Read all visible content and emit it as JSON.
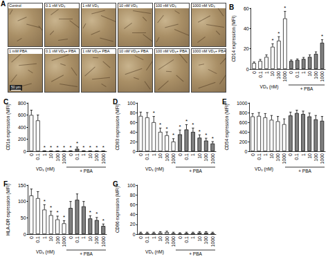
{
  "image_panel": {
    "panel": "A",
    "tiles": [
      "Control",
      "0.1 nM VD₃",
      "1 nM VD₃",
      "10 nM VD₃",
      "100 nM VD₃",
      "1000 nM VD₃",
      "1 mM PBA",
      "0.1 nM VD₃+ PBA",
      "1 nM VD₃+ PBA",
      "10 nM VD₃+ PBA",
      "100 nM VD₃+ PBA",
      "1000 nM VD₃+ PBA"
    ],
    "scale_bar": "50 μm"
  },
  "chart_data": [
    {
      "panel": "B",
      "type": "bar",
      "ylabel": "CD14 expression (MFI)",
      "xlabel": "VD₃ (nM)",
      "group_label": "+ PBA",
      "categories": [
        "0",
        "0.1",
        "1",
        "10",
        "100",
        "1000",
        "0",
        "0.1",
        "1",
        "10",
        "100",
        "1000"
      ],
      "values": [
        6,
        8,
        12,
        22,
        28,
        50,
        8,
        9,
        10,
        12,
        15,
        26
      ],
      "errors": [
        1,
        1.5,
        2,
        3,
        4,
        7,
        1,
        1,
        1.5,
        2,
        2,
        3
      ],
      "significance": [
        null,
        null,
        null,
        "*",
        "*",
        "*",
        null,
        null,
        null,
        null,
        null,
        "*"
      ],
      "colors": [
        "#ffffff",
        "#ffffff",
        "#ffffff",
        "#ffffff",
        "#ffffff",
        "#ffffff",
        "#7f7f7f",
        "#7f7f7f",
        "#7f7f7f",
        "#7f7f7f",
        "#7f7f7f",
        "#7f7f7f"
      ],
      "ylim": [
        0,
        60
      ],
      "yticks": [
        0,
        20,
        40,
        60
      ]
    },
    {
      "panel": "C",
      "type": "bar",
      "ylabel": "CD1a expression (MFI)",
      "xlabel": "VD₃ (nM)",
      "group_label": "+ PBA",
      "categories": [
        "0",
        "0.1",
        "1",
        "10",
        "100",
        "1000",
        "0",
        "0.1",
        "1",
        "10",
        "100",
        "1000"
      ],
      "values": [
        600,
        510,
        5,
        3,
        2,
        2,
        5,
        40,
        5,
        3,
        2,
        2
      ],
      "errors": [
        80,
        90,
        2,
        1,
        1,
        1,
        3,
        30,
        3,
        1,
        1,
        1
      ],
      "significance": [
        null,
        null,
        "*",
        "*",
        "*",
        "*",
        "*",
        "*",
        "*",
        "*",
        "*",
        "*"
      ],
      "colors": [
        "#ffffff",
        "#ffffff",
        "#ffffff",
        "#ffffff",
        "#ffffff",
        "#ffffff",
        "#7f7f7f",
        "#7f7f7f",
        "#7f7f7f",
        "#7f7f7f",
        "#7f7f7f",
        "#7f7f7f"
      ],
      "ylim": [
        0,
        800
      ],
      "yticks": [
        0,
        200,
        400,
        600,
        800
      ]
    },
    {
      "panel": "D",
      "type": "bar",
      "ylabel": "CD83 expression (MFI)",
      "xlabel": "VD₃ (nM)",
      "group_label": "+ PBA",
      "categories": [
        "0",
        "0.1",
        "1",
        "10",
        "100",
        "1000",
        "0",
        "0.1",
        "1",
        "10",
        "100",
        "1000"
      ],
      "values": [
        73,
        70,
        60,
        40,
        33,
        20,
        35,
        45,
        40,
        28,
        22,
        16
      ],
      "errors": [
        8,
        10,
        12,
        8,
        7,
        6,
        9,
        10,
        8,
        6,
        5,
        4
      ],
      "significance": [
        null,
        null,
        "*",
        "*",
        "*",
        "*",
        "*",
        "*",
        "*",
        "*",
        "*",
        "*"
      ],
      "colors": [
        "#ffffff",
        "#ffffff",
        "#ffffff",
        "#ffffff",
        "#ffffff",
        "#ffffff",
        "#7f7f7f",
        "#7f7f7f",
        "#7f7f7f",
        "#7f7f7f",
        "#7f7f7f",
        "#7f7f7f"
      ],
      "ylim": [
        0,
        100
      ],
      "yticks": [
        0,
        20,
        40,
        60,
        80,
        100
      ]
    },
    {
      "panel": "E",
      "type": "bar",
      "ylabel": "CD54 expression (MFI)",
      "xlabel": "VD₃ (nM)",
      "group_label": "+ PBA",
      "categories": [
        "0",
        "0.1",
        "1",
        "10",
        "100",
        "1000",
        "0",
        "0.1",
        "1",
        "10",
        "100",
        "1000"
      ],
      "values": [
        720,
        730,
        700,
        650,
        620,
        560,
        740,
        790,
        770,
        720,
        660,
        630
      ],
      "errors": [
        60,
        70,
        80,
        90,
        100,
        110,
        70,
        60,
        60,
        70,
        80,
        90
      ],
      "colors": [
        "#ffffff",
        "#ffffff",
        "#ffffff",
        "#ffffff",
        "#ffffff",
        "#ffffff",
        "#7f7f7f",
        "#7f7f7f",
        "#7f7f7f",
        "#7f7f7f",
        "#7f7f7f",
        "#7f7f7f"
      ],
      "ylim": [
        0,
        1000
      ],
      "yticks": [
        0,
        200,
        400,
        600,
        800,
        1000
      ]
    },
    {
      "panel": "F",
      "type": "bar",
      "ylabel": "HLA-DR expression (MFI)",
      "xlabel": "VD₃ (nM)",
      "group_label": "+ PBA",
      "categories": [
        "0",
        "0.1",
        "1",
        "10",
        "100",
        "1000",
        "0",
        "0.1",
        "1",
        "10",
        "100",
        "1000"
      ],
      "values": [
        118,
        110,
        75,
        58,
        45,
        33,
        80,
        105,
        85,
        48,
        43,
        25
      ],
      "errors": [
        20,
        20,
        15,
        12,
        10,
        8,
        20,
        18,
        15,
        8,
        8,
        6
      ],
      "significance": [
        null,
        null,
        "*",
        "*",
        "*",
        "*",
        null,
        null,
        null,
        "*",
        "*",
        "*"
      ],
      "colors": [
        "#ffffff",
        "#ffffff",
        "#ffffff",
        "#ffffff",
        "#ffffff",
        "#ffffff",
        "#7f7f7f",
        "#7f7f7f",
        "#7f7f7f",
        "#7f7f7f",
        "#7f7f7f",
        "#7f7f7f"
      ],
      "ylim": [
        0,
        150
      ],
      "yticks": [
        0,
        50,
        100,
        150
      ]
    },
    {
      "panel": "G",
      "type": "bar",
      "ylabel": "CD86 expression (MFI)",
      "xlabel": "VD₃ (nM)",
      "group_label": "+ PBA",
      "categories": [
        "0",
        "0.1",
        "1",
        "10",
        "100",
        "1000",
        "0",
        "0.1",
        "1",
        "10",
        "100",
        "1000"
      ],
      "values": [
        2,
        2,
        2,
        3,
        4,
        2,
        1,
        2,
        2,
        3,
        3,
        2
      ],
      "errors": [
        2,
        2,
        2,
        2,
        2,
        2,
        2,
        2,
        2,
        2,
        2,
        2
      ],
      "colors": [
        "#ffffff",
        "#ffffff",
        "#ffffff",
        "#ffffff",
        "#ffffff",
        "#ffffff",
        "#7f7f7f",
        "#7f7f7f",
        "#7f7f7f",
        "#7f7f7f",
        "#7f7f7f",
        "#7f7f7f"
      ],
      "ylim": [
        0,
        100
      ],
      "yticks": [
        0,
        20,
        40,
        60,
        80,
        100
      ]
    }
  ]
}
